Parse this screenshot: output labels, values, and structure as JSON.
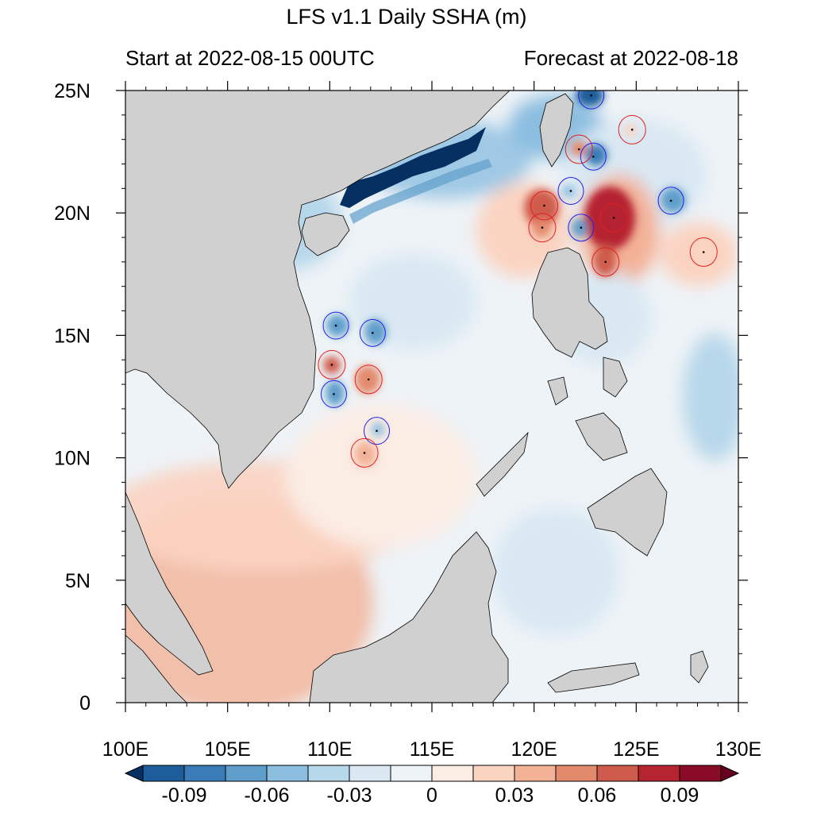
{
  "title": "LFS v1.1 Daily SSHA (m)",
  "start_text": "Start at 2022-08-15 00UTC",
  "forecast_text": "Forecast at 2022-08-18",
  "map": {
    "lon_range": [
      100,
      130
    ],
    "lat_range": [
      0,
      25
    ],
    "x_tick_labels": [
      "100E",
      "105E",
      "110E",
      "115E",
      "120E",
      "125E",
      "130E"
    ],
    "y_tick_labels": [
      "25N",
      "20N",
      "15N",
      "10N",
      "5N",
      "0"
    ],
    "land_color": "#d0d0d0"
  },
  "colorbar": {
    "labels": [
      "-0.09",
      "-0.06",
      "-0.03",
      "0",
      "0.03",
      "0.06",
      "0.09"
    ],
    "colors": [
      "#053061",
      "#1e5d9b",
      "#3a7cb8",
      "#5f9ecb",
      "#8cbee0",
      "#b7d7ea",
      "#d9e8f3",
      "#eef3f7",
      "#fbece4",
      "#fbd3c1",
      "#f3b196",
      "#e48a6c",
      "#cf5b4c",
      "#b52430",
      "#8a0b25",
      "#67001f"
    ]
  },
  "eddies": [
    {
      "type": "anticyclonic",
      "lon": 110.3,
      "lat": 15.4
    },
    {
      "type": "anticyclonic",
      "lon": 112.1,
      "lat": 15.1
    },
    {
      "type": "cyclonic",
      "lon": 110.1,
      "lat": 13.8
    },
    {
      "type": "cyclonic",
      "lon": 111.9,
      "lat": 13.2
    },
    {
      "type": "anticyclonic",
      "lon": 110.2,
      "lat": 12.6
    },
    {
      "type": "anticyclonic",
      "lon": 112.3,
      "lat": 11.1
    },
    {
      "type": "cyclonic",
      "lon": 111.7,
      "lat": 10.2
    },
    {
      "type": "cyclonic",
      "lon": 120.5,
      "lat": 20.3
    },
    {
      "type": "cyclonic",
      "lon": 120.4,
      "lat": 19.4
    },
    {
      "type": "anticyclonic",
      "lon": 121.8,
      "lat": 20.9
    },
    {
      "type": "anticyclonic",
      "lon": 122.3,
      "lat": 19.4
    },
    {
      "type": "cyclonic",
      "lon": 122.2,
      "lat": 22.6
    },
    {
      "type": "anticyclonic",
      "lon": 122.9,
      "lat": 22.3
    },
    {
      "type": "anticyclonic",
      "lon": 122.8,
      "lat": 24.8
    },
    {
      "type": "cyclonic",
      "lon": 124.8,
      "lat": 23.4
    },
    {
      "type": "cyclonic",
      "lon": 123.9,
      "lat": 19.8
    },
    {
      "type": "cyclonic",
      "lon": 123.5,
      "lat": 18.0
    },
    {
      "type": "anticyclonic",
      "lon": 126.7,
      "lat": 20.5
    },
    {
      "type": "cyclonic",
      "lon": 128.3,
      "lat": 18.4
    }
  ]
}
